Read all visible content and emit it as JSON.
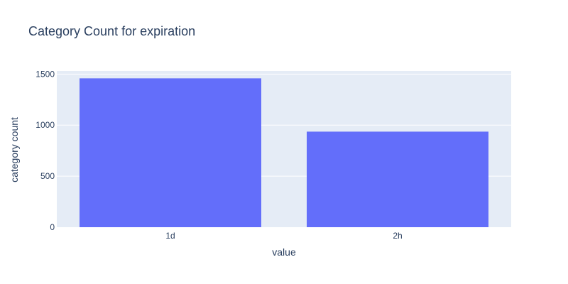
{
  "chart_data": {
    "type": "bar",
    "title": "Category Count for expiration",
    "xlabel": "value",
    "ylabel": "category count",
    "categories": [
      "1d",
      "2h"
    ],
    "values": [
      1458,
      936
    ],
    "ylim": [
      0,
      1530
    ],
    "yticks": [
      0,
      500,
      1000,
      1500
    ],
    "grid": true,
    "colors": {
      "bar": "#636efa",
      "plot_bg": "#e5ecf6",
      "grid": "#ffffff",
      "text": "#2a3f5f"
    }
  }
}
